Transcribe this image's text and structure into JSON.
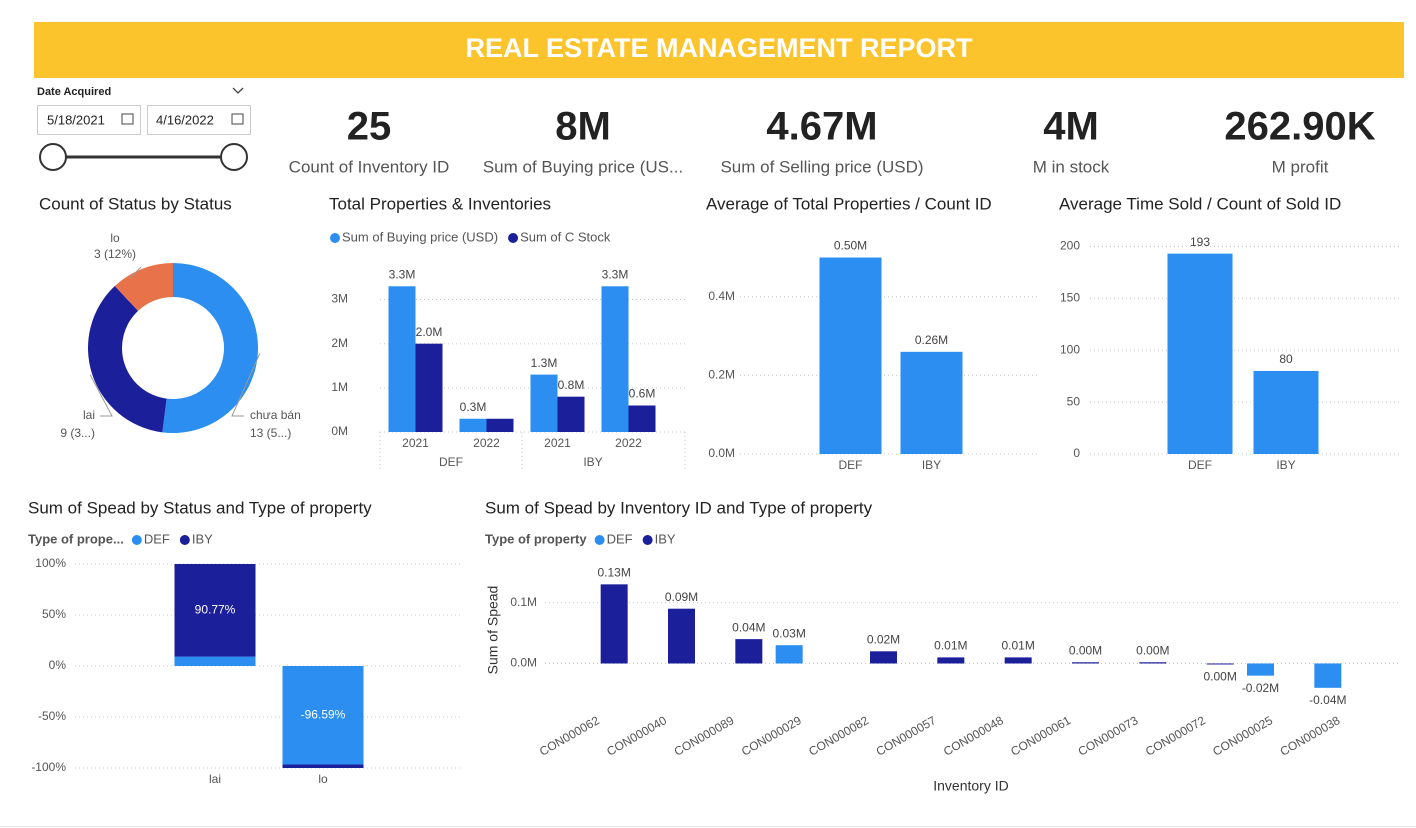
{
  "header": {
    "title": "REAL ESTATE MANAGEMENT REPORT"
  },
  "slicer": {
    "label": "Date Acquired",
    "start": "5/18/2021",
    "end": "4/16/2022"
  },
  "cards": [
    {
      "value": "25",
      "label": "Count of Inventory ID"
    },
    {
      "value": "8M",
      "label": "Sum of Buying price (US..."
    },
    {
      "value": "4.67M",
      "label": "Sum of Selling price (USD)"
    },
    {
      "value": "4M",
      "label": "M in stock"
    },
    {
      "value": "262.90K",
      "label": "M profit"
    }
  ],
  "chart_data": [
    {
      "type": "donut",
      "title": "Count of Status by Status",
      "categories": [
        "chưa bán",
        "lai",
        "lo"
      ],
      "values": [
        13,
        9,
        3
      ],
      "value_labels": [
        "13 (5...)",
        "9 (3...)",
        "3 (12%)"
      ],
      "colors": [
        "#2b8ef0",
        "#1b1f9a",
        "#e8734a"
      ]
    },
    {
      "type": "bar",
      "title": "Total Properties & Inventories",
      "groups": [
        "DEF",
        "IBY"
      ],
      "categories": [
        "2021",
        "2022",
        "2021",
        "2022"
      ],
      "series": [
        {
          "name": "Sum of Buying price (USD)",
          "color": "#2b8ef0",
          "values": [
            3300000,
            300000,
            1300000,
            3300000
          ],
          "value_labels": [
            "3.3M",
            "0.3M",
            "1.3M",
            "3.3M"
          ]
        },
        {
          "name": "Sum of C Stock",
          "color": "#1b1f9a",
          "values": [
            2000000,
            300000,
            800000,
            600000
          ],
          "value_labels": [
            "2.0M",
            null,
            "0.8M",
            "0.6M"
          ]
        }
      ],
      "ylim": [
        0,
        3850000
      ],
      "yticks": [
        {
          "value": 0,
          "label": "0M"
        },
        {
          "value": 1000000,
          "label": "1M"
        },
        {
          "value": 2000000,
          "label": "2M"
        },
        {
          "value": 3000000,
          "label": "3M"
        }
      ],
      "grid": true,
      "legend": "top"
    },
    {
      "type": "bar",
      "title": "Average of Total Properties / Count ID",
      "categories": [
        "DEF",
        "IBY"
      ],
      "values": [
        500000,
        260000
      ],
      "value_labels": [
        "0.50M",
        "0.26M"
      ],
      "color": "#2b8ef0",
      "ylim": [
        0,
        570000
      ],
      "yticks": [
        {
          "value": 0,
          "label": "0.0M"
        },
        {
          "value": 200000,
          "label": "0.2M"
        },
        {
          "value": 400000,
          "label": "0.4M"
        }
      ],
      "grid": true
    },
    {
      "type": "bar",
      "title": "Average Time Sold / Count of Sold ID",
      "categories": [
        "DEF",
        "IBY"
      ],
      "values": [
        193,
        80
      ],
      "color": "#2b8ef0",
      "ylim": [
        0,
        210
      ],
      "yticks": [
        0,
        50,
        100,
        150,
        200
      ],
      "grid": true
    },
    {
      "type": "stacked_bar",
      "title": "Sum of Spead by Status and Type of property",
      "legend_title": "Type of prope...",
      "categories": [
        "lai",
        "lo"
      ],
      "series": [
        {
          "name": "DEF",
          "color": "#2b8ef0",
          "values": [
            9.23,
            -96.59
          ],
          "value_labels": [
            null,
            "-96.59%"
          ]
        },
        {
          "name": "IBY",
          "color": "#1b1f9a",
          "values": [
            90.77,
            -3.41
          ],
          "value_labels": [
            "90.77%",
            null
          ]
        }
      ],
      "ylim": [
        -100,
        100
      ],
      "yticks": [
        {
          "value": 100,
          "label": "100%"
        },
        {
          "value": 50,
          "label": "50%"
        },
        {
          "value": 0,
          "label": "0%"
        },
        {
          "value": -50,
          "label": "-50%"
        },
        {
          "value": -100,
          "label": "-100%"
        }
      ],
      "grid": true,
      "legend": "top"
    },
    {
      "type": "bar",
      "title": "Sum of Spead by Inventory ID and Type of property",
      "legend_title": "Type of property",
      "xlabel": "Inventory ID",
      "ylabel": "Sum of Spead",
      "categories": [
        "CON000062",
        "CON000040",
        "CON000089",
        "CON000029",
        "CON000082",
        "CON000057",
        "CON000048",
        "CON000061",
        "CON000073",
        "CON000072",
        "CON000025",
        "CON000038"
      ],
      "series": [
        {
          "name": "DEF",
          "color": "#2b8ef0",
          "values": [
            null,
            null,
            null,
            30000,
            null,
            null,
            null,
            null,
            null,
            null,
            -20000,
            -40000
          ],
          "value_labels": [
            null,
            null,
            null,
            "0.03M",
            null,
            null,
            null,
            null,
            null,
            null,
            "-0.02M",
            "-0.04M"
          ]
        },
        {
          "name": "IBY",
          "color": "#1b1f9a",
          "values": [
            130000,
            90000,
            40000,
            null,
            20000,
            10000,
            10000,
            2000,
            2000,
            -1000,
            null,
            null
          ],
          "value_labels": [
            "0.13M",
            "0.09M",
            "0.04M",
            null,
            "0.02M",
            "0.01M",
            "0.01M",
            "0.00M",
            "0.00M",
            "0.00M",
            null,
            null
          ]
        }
      ],
      "ylim": [
        -60000,
        170000
      ],
      "yticks": [
        {
          "value": 0,
          "label": "0.0M"
        },
        {
          "value": 100000,
          "label": "0.1M"
        }
      ],
      "grid": true,
      "legend": "top"
    }
  ]
}
